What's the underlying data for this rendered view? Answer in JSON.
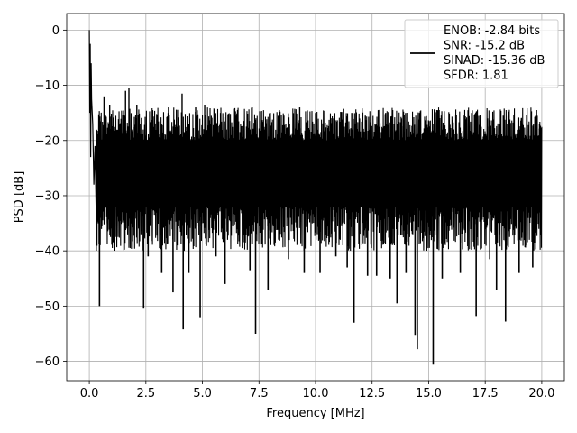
{
  "chart_data": {
    "type": "line",
    "xlabel": "Frequency [MHz]",
    "ylabel": "PSD [dB]",
    "xlim": [
      -1.0,
      21.0
    ],
    "ylim": [
      -63.5,
      3.0
    ],
    "xticks": [
      0.0,
      2.5,
      5.0,
      7.5,
      10.0,
      12.5,
      15.0,
      17.5,
      20.0
    ],
    "xtick_labels": [
      "0.0",
      "2.5",
      "5.0",
      "7.5",
      "10.0",
      "12.5",
      "15.0",
      "17.5",
      "20.0"
    ],
    "yticks": [
      0,
      -10,
      -20,
      -30,
      -40,
      -50,
      -60
    ],
    "ytick_labels": [
      "0",
      "−10",
      "−20",
      "−30",
      "−40",
      "−50",
      "−60"
    ],
    "grid": true,
    "legend_position": "top-right",
    "line_color": "#000000",
    "legend": [
      "ENOB: -2.84 bits",
      "SNR: -15.2 dB",
      "SINAD: -15.36 dB",
      "SFDR: 1.81"
    ],
    "series": [
      {
        "x": [
          0.0,
          0.02,
          0.04,
          0.06,
          0.08,
          0.1,
          0.15,
          0.2,
          0.25,
          0.3,
          0.35,
          0.4,
          0.45,
          0.5,
          0.6,
          0.7,
          0.8,
          1.0,
          1.2,
          1.5,
          1.8,
          2.0,
          2.2,
          2.5,
          2.7,
          3.0,
          3.3,
          3.6,
          4.0,
          4.3,
          4.6,
          5.0,
          5.5,
          6.0,
          6.5,
          7.0,
          7.5,
          8.0,
          8.5,
          9.0,
          9.5,
          10.0,
          10.5,
          11.0,
          11.5,
          12.0,
          12.5,
          13.0,
          13.5,
          14.0,
          14.5,
          15.0,
          15.5,
          16.0,
          16.5,
          17.0,
          17.5,
          18.0,
          18.5,
          19.0,
          19.5,
          20.0
        ],
        "y": [
          0.0,
          -15.0,
          -2.5,
          -23.0,
          -6.0,
          -12.5,
          -17.0,
          -28.0,
          -21.0,
          -32.0,
          -25.0,
          -35.0,
          -27.0,
          -34.0,
          -22.0,
          -29.0,
          -24.0,
          -31.0,
          -23.0,
          -30.0,
          -26.0,
          -24.0,
          -28.0,
          -25.0,
          -30.0,
          -26.0,
          -29.0,
          -24.0,
          -27.0,
          -30.0,
          -25.0,
          -28.0,
          -26.0,
          -29.0,
          -27.0,
          -25.0,
          -28.0,
          -26.0,
          -30.0,
          -27.0,
          -28.0,
          -26.0,
          -29.0,
          -27.0,
          -25.0,
          -28.0,
          -27.0,
          -29.0,
          -26.0,
          -28.0,
          -27.0,
          -30.0,
          -26.0,
          -28.0,
          -27.0,
          -29.0,
          -26.0,
          -28.0,
          -27.0,
          -29.0,
          -26.0,
          -27.0
        ]
      }
    ],
    "spikes_down": [
      {
        "x": 0.45,
        "y": -50.0
      },
      {
        "x": 0.55,
        "y": -35.5
      },
      {
        "x": 0.8,
        "y": -35.0
      },
      {
        "x": 1.0,
        "y": -37.5
      },
      {
        "x": 2.4,
        "y": -50.3
      },
      {
        "x": 2.6,
        "y": -41.0
      },
      {
        "x": 3.2,
        "y": -44.0
      },
      {
        "x": 3.7,
        "y": -47.5
      },
      {
        "x": 4.15,
        "y": -54.2
      },
      {
        "x": 4.4,
        "y": -44.0
      },
      {
        "x": 4.9,
        "y": -52.0
      },
      {
        "x": 5.6,
        "y": -41.0
      },
      {
        "x": 6.0,
        "y": -46.0
      },
      {
        "x": 7.1,
        "y": -43.5
      },
      {
        "x": 7.35,
        "y": -55.0
      },
      {
        "x": 7.9,
        "y": -47.0
      },
      {
        "x": 8.8,
        "y": -41.5
      },
      {
        "x": 9.5,
        "y": -44.0
      },
      {
        "x": 10.2,
        "y": -44.0
      },
      {
        "x": 10.9,
        "y": -41.0
      },
      {
        "x": 11.4,
        "y": -43.0
      },
      {
        "x": 11.7,
        "y": -53.0
      },
      {
        "x": 12.3,
        "y": -44.5
      },
      {
        "x": 12.7,
        "y": -44.5
      },
      {
        "x": 13.3,
        "y": -45.0
      },
      {
        "x": 13.6,
        "y": -49.5
      },
      {
        "x": 14.0,
        "y": -44.0
      },
      {
        "x": 14.4,
        "y": -55.2
      },
      {
        "x": 14.5,
        "y": -57.8
      },
      {
        "x": 15.2,
        "y": -60.6
      },
      {
        "x": 15.6,
        "y": -45.0
      },
      {
        "x": 16.4,
        "y": -44.0
      },
      {
        "x": 17.1,
        "y": -51.8
      },
      {
        "x": 17.7,
        "y": -41.5
      },
      {
        "x": 18.0,
        "y": -47.0
      },
      {
        "x": 18.4,
        "y": -52.8
      },
      {
        "x": 19.0,
        "y": -44.0
      },
      {
        "x": 19.6,
        "y": -43.0
      }
    ],
    "spikes_up": [
      {
        "x": 0.65,
        "y": -12.0
      },
      {
        "x": 0.9,
        "y": -13.5
      },
      {
        "x": 1.6,
        "y": -11.0
      },
      {
        "x": 1.75,
        "y": -10.5
      },
      {
        "x": 2.1,
        "y": -13.5
      },
      {
        "x": 2.8,
        "y": -14.5
      },
      {
        "x": 3.5,
        "y": -14.0
      },
      {
        "x": 4.1,
        "y": -11.5
      },
      {
        "x": 4.7,
        "y": -14.0
      },
      {
        "x": 5.1,
        "y": -13.5
      },
      {
        "x": 5.8,
        "y": -15.0
      },
      {
        "x": 6.5,
        "y": -15.5
      },
      {
        "x": 7.2,
        "y": -14.0
      },
      {
        "x": 8.0,
        "y": -15.0
      },
      {
        "x": 8.6,
        "y": -15.5
      },
      {
        "x": 9.3,
        "y": -14.0
      },
      {
        "x": 10.0,
        "y": -15.0
      },
      {
        "x": 10.8,
        "y": -16.0
      },
      {
        "x": 11.6,
        "y": -15.0
      },
      {
        "x": 12.2,
        "y": -15.5
      },
      {
        "x": 13.1,
        "y": -15.0
      },
      {
        "x": 13.8,
        "y": -16.0
      },
      {
        "x": 14.6,
        "y": -15.0
      },
      {
        "x": 15.4,
        "y": -14.5
      },
      {
        "x": 16.2,
        "y": -15.5
      },
      {
        "x": 16.9,
        "y": -15.0
      },
      {
        "x": 17.6,
        "y": -16.0
      },
      {
        "x": 18.3,
        "y": -15.5
      },
      {
        "x": 19.1,
        "y": -16.0
      },
      {
        "x": 19.9,
        "y": -17.0
      }
    ]
  }
}
